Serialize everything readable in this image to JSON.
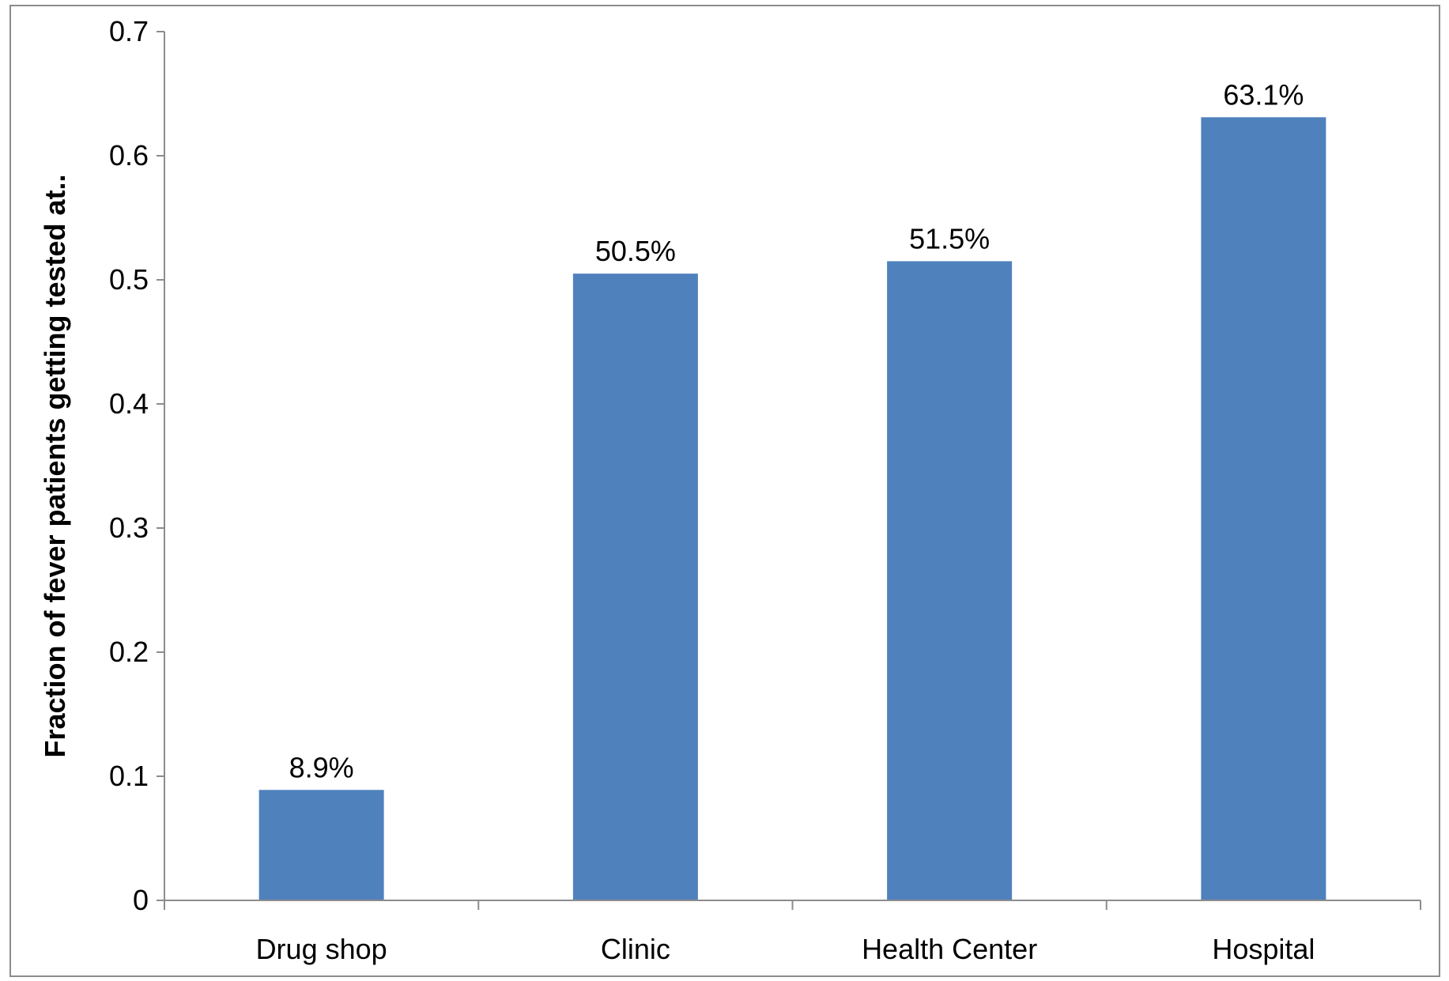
{
  "chart_data": {
    "type": "bar",
    "categories": [
      "Drug shop",
      "Clinic",
      "Health Center",
      "Hospital"
    ],
    "values": [
      0.089,
      0.505,
      0.515,
      0.631
    ],
    "data_labels": [
      "8.9%",
      "50.5%",
      "51.5%",
      "63.1%"
    ],
    "title": "",
    "xlabel": "",
    "ylabel": "Fraction of fever patients getting tested at..",
    "ylim": [
      0,
      0.7
    ],
    "yticks": [
      0,
      0.1,
      0.2,
      0.3,
      0.4,
      0.5,
      0.6,
      0.7
    ],
    "ytick_labels": [
      "0",
      "0.1",
      "0.2",
      "0.3",
      "0.4",
      "0.5",
      "0.6",
      "0.7"
    ],
    "grid": false,
    "legend": "none",
    "bar_color": "#4f81bd",
    "axis_color": "#8c8c8c"
  }
}
